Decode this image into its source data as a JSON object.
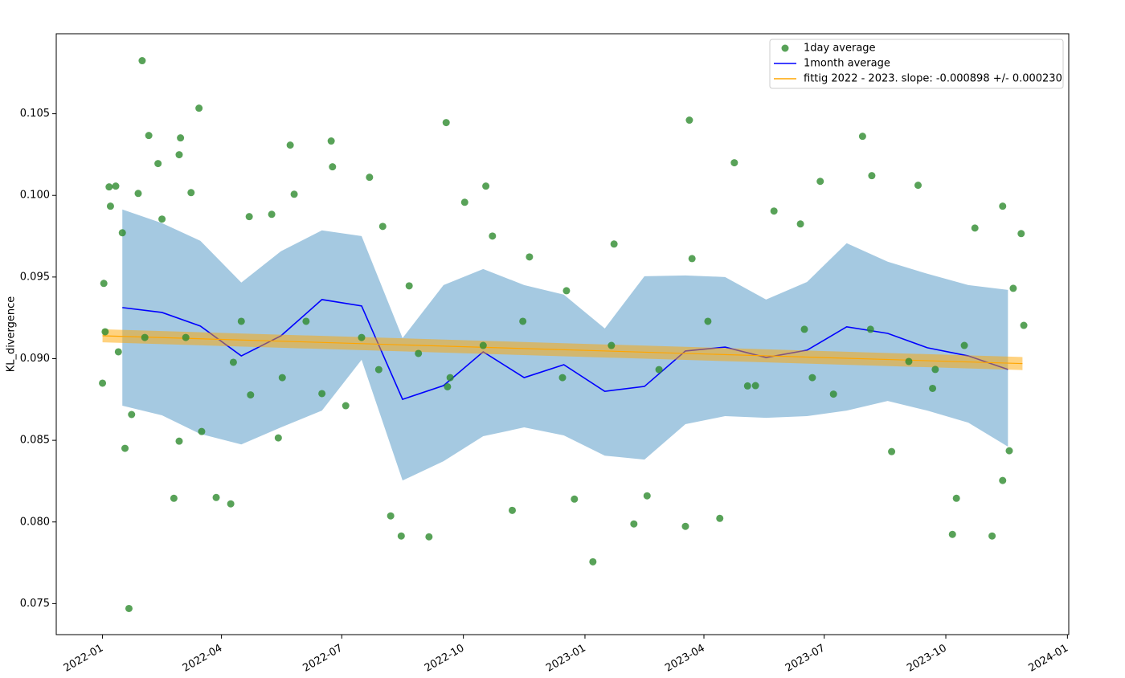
{
  "chart_data": {
    "type": "scatter",
    "ylabel": "KL_divergence",
    "xlim": [
      -35,
      731
    ],
    "ylim": [
      0.0731,
      0.1099
    ],
    "xticks": [
      {
        "value": 0,
        "label": "2022-01"
      },
      {
        "value": 90,
        "label": "2022-04"
      },
      {
        "value": 181,
        "label": "2022-07"
      },
      {
        "value": 273,
        "label": "2022-10"
      },
      {
        "value": 365,
        "label": "2023-01"
      },
      {
        "value": 455,
        "label": "2023-04"
      },
      {
        "value": 546,
        "label": "2023-07"
      },
      {
        "value": 638,
        "label": "2023-10"
      },
      {
        "value": 730,
        "label": "2024-01"
      }
    ],
    "yticks": [
      0.075,
      {
        "value": 0.08,
        "label": "0.080"
      },
      0.085,
      {
        "value": 0.09,
        "label": "0.090"
      },
      0.095,
      {
        "value": 0.1,
        "label": "0.100"
      },
      0.105
    ],
    "legend": "upper right",
    "series": [
      {
        "name": "1day average",
        "type": "scatter",
        "color": "#2e8b2e",
        "x": [
          0,
          1,
          2,
          5,
          6,
          10,
          12,
          15,
          17,
          20,
          22,
          27,
          30,
          35,
          42,
          45,
          54,
          58,
          59,
          58,
          67,
          73,
          75,
          86,
          97,
          99,
          111,
          112,
          128,
          133,
          142,
          145,
          166,
          173,
          174,
          184,
          202,
          212,
          218,
          226,
          232,
          247,
          260,
          261,
          274,
          290,
          295,
          310,
          323,
          351,
          357,
          371,
          387,
          402,
          412,
          441,
          444,
          446,
          467,
          478,
          488,
          508,
          528,
          543,
          553,
          575,
          582,
          597,
          617,
          628,
          630,
          643,
          646,
          660,
          673,
          681,
          681,
          686,
          695,
          697,
          689,
          581,
          531,
          494,
          421,
          348,
          288,
          239,
          196,
          154,
          105,
          63,
          32,
          652,
          610,
          537,
          458,
          385,
          318,
          263,
          209,
          136
        ],
        "values": [
          0.0885,
          0.09461,
          0.09165,
          0.10052,
          0.09934,
          0.10057,
          0.09042,
          0.09771,
          0.08451,
          0.0747,
          0.08658,
          0.10012,
          0.10825,
          0.10367,
          0.10195,
          0.09855,
          0.08145,
          0.08495,
          0.10352,
          0.10249,
          0.10017,
          0.10534,
          0.08554,
          0.0815,
          0.08111,
          0.08978,
          0.0987,
          0.08778,
          0.09884,
          0.08515,
          0.10308,
          0.10007,
          0.08786,
          0.10333,
          0.10175,
          0.08712,
          0.10111,
          0.0981,
          0.08037,
          0.07914,
          0.09446,
          0.07909,
          0.10446,
          0.08828,
          0.09958,
          0.10057,
          0.09751,
          0.08071,
          0.09623,
          0.09416,
          0.0814,
          0.07756,
          0.09702,
          0.07988,
          0.0816,
          0.07973,
          0.10461,
          0.09613,
          0.08022,
          0.102,
          0.08833,
          0.09904,
          0.09825,
          0.10086,
          0.08783,
          0.10362,
          0.10121,
          0.08431,
          0.10062,
          0.08818,
          0.08934,
          0.07924,
          0.08145,
          0.098,
          0.07914,
          0.09934,
          0.08254,
          0.08436,
          0.09766,
          0.09204,
          0.09431,
          0.0918,
          0.0918,
          0.08835,
          0.08933,
          0.08884,
          0.09081,
          0.09032,
          0.0913,
          0.09229,
          0.09229,
          0.0913,
          0.0913,
          0.09081,
          0.08983,
          0.08884,
          0.09229,
          0.09081,
          0.09229,
          0.08884,
          0.08933,
          0.08884
        ]
      },
      {
        "name": "1month average",
        "type": "line",
        "color": "#0000ff",
        "band_color": "#1f77b4",
        "x": [
          15,
          45,
          74,
          105,
          135,
          166,
          196,
          227,
          258,
          288,
          319,
          349,
          380,
          410,
          441,
          471,
          502,
          533,
          563,
          594,
          624,
          655,
          685
        ],
        "values": [
          0.09313,
          0.09283,
          0.092,
          0.09017,
          0.0914,
          0.09362,
          0.09323,
          0.08751,
          0.08835,
          0.09042,
          0.08884,
          0.08963,
          0.088,
          0.0883,
          0.09047,
          0.09071,
          0.09007,
          0.09052,
          0.09195,
          0.09155,
          0.09067,
          0.09017,
          0.08934
        ],
        "upper": [
          0.09914,
          0.0983,
          0.09722,
          0.09466,
          0.09658,
          0.09786,
          0.09751,
          0.09126,
          0.09451,
          0.09549,
          0.09451,
          0.09392,
          0.09185,
          0.09505,
          0.0951,
          0.095,
          0.09362,
          0.0947,
          0.09707,
          0.09594,
          0.0952,
          0.09451,
          0.09421
        ],
        "lower": [
          0.08712,
          0.08653,
          0.08539,
          0.08475,
          0.08579,
          0.08682,
          0.08993,
          0.08254,
          0.08372,
          0.08525,
          0.08579,
          0.0853,
          0.08406,
          0.08382,
          0.08599,
          0.08648,
          0.08638,
          0.08648,
          0.08682,
          0.08741,
          0.08682,
          0.08608,
          0.08461
        ]
      },
      {
        "name": "fittig 2022 - 2023. slope: -0.000898 +/- 0.000230",
        "type": "line",
        "color": "#ffa500",
        "band_color": "#ffa500",
        "x": [
          0,
          696
        ],
        "values": [
          0.0914,
          0.0897
        ],
        "upper": [
          0.0918,
          0.0901
        ],
        "lower": [
          0.091,
          0.0893
        ]
      }
    ]
  }
}
